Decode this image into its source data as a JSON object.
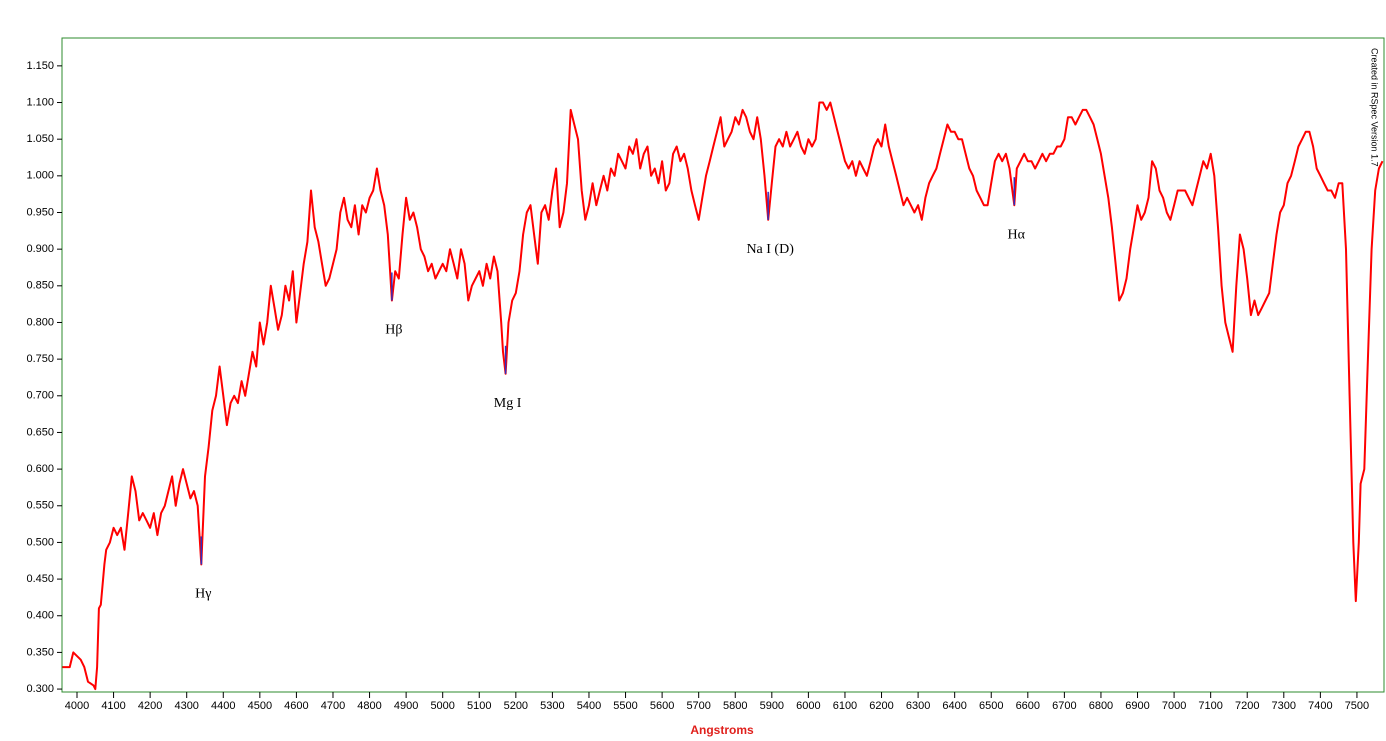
{
  "chart_data": {
    "type": "line",
    "x_label": "Angstroms",
    "side_note": "Created in RSpec Version 1.7",
    "color": "#ff0000",
    "frame_color": "#2e8b2e",
    "xlim": [
      3959,
      7574
    ],
    "ylim": [
      0.296,
      1.188
    ],
    "xticks": [
      4000,
      4100,
      4200,
      4300,
      4400,
      4500,
      4600,
      4700,
      4800,
      4900,
      5000,
      5100,
      5200,
      5300,
      5400,
      5500,
      5600,
      5700,
      5800,
      5900,
      6000,
      6100,
      6200,
      6300,
      6400,
      6500,
      6600,
      6700,
      6800,
      6900,
      7000,
      7100,
      7200,
      7300,
      7400,
      7500
    ],
    "yticks": [
      {
        "value": 0.3,
        "label": "0.300"
      },
      {
        "value": 0.35,
        "label": "0.350"
      },
      {
        "value": 0.4,
        "label": "0.400"
      },
      {
        "value": 0.45,
        "label": "0.450"
      },
      {
        "value": 0.5,
        "label": "0.500"
      },
      {
        "value": 0.55,
        "label": "0.550"
      },
      {
        "value": 0.6,
        "label": "0.600"
      },
      {
        "value": 0.65,
        "label": "0.650"
      },
      {
        "value": 0.7,
        "label": "0.700"
      },
      {
        "value": 0.75,
        "label": "0.750"
      },
      {
        "value": 0.8,
        "label": "0.800"
      },
      {
        "value": 0.85,
        "label": "0.850"
      },
      {
        "value": 0.9,
        "label": "0.900"
      },
      {
        "value": 0.95,
        "label": "0.950"
      },
      {
        "value": 1.0,
        "label": "1.000"
      },
      {
        "value": 1.05,
        "label": "1.050"
      },
      {
        "value": 1.1,
        "label": "1.100"
      },
      {
        "value": 1.15,
        "label": "1.150"
      }
    ],
    "annotations": [
      {
        "text": "Hγ",
        "x": 4340
      },
      {
        "text": "Hβ",
        "x": 4861
      },
      {
        "text": "Mg I",
        "x": 5172
      },
      {
        "text": "Na I (D)",
        "x": 5890
      },
      {
        "text": "Hα",
        "x": 6563
      }
    ],
    "x": [
      3960,
      3980,
      3990,
      4000,
      4010,
      4020,
      4030,
      4045,
      4050,
      4055,
      4060,
      4065,
      4075,
      4080,
      4090,
      4100,
      4110,
      4120,
      4130,
      4140,
      4150,
      4160,
      4170,
      4180,
      4190,
      4200,
      4210,
      4220,
      4230,
      4240,
      4250,
      4260,
      4270,
      4280,
      4290,
      4300,
      4310,
      4320,
      4330,
      4340,
      4350,
      4360,
      4370,
      4380,
      4390,
      4400,
      4410,
      4420,
      4430,
      4440,
      4450,
      4460,
      4470,
      4480,
      4490,
      4500,
      4510,
      4520,
      4530,
      4540,
      4550,
      4560,
      4570,
      4580,
      4590,
      4600,
      4610,
      4620,
      4630,
      4640,
      4650,
      4660,
      4670,
      4680,
      4690,
      4700,
      4710,
      4720,
      4730,
      4740,
      4750,
      4760,
      4770,
      4780,
      4790,
      4800,
      4810,
      4820,
      4830,
      4840,
      4850,
      4861,
      4870,
      4880,
      4890,
      4900,
      4910,
      4920,
      4930,
      4940,
      4950,
      4960,
      4970,
      4980,
      4990,
      5000,
      5010,
      5020,
      5030,
      5040,
      5050,
      5060,
      5070,
      5080,
      5090,
      5100,
      5110,
      5120,
      5130,
      5140,
      5150,
      5160,
      5165,
      5172,
      5180,
      5190,
      5200,
      5210,
      5220,
      5230,
      5240,
      5250,
      5260,
      5270,
      5280,
      5290,
      5300,
      5310,
      5320,
      5330,
      5340,
      5350,
      5360,
      5370,
      5380,
      5390,
      5400,
      5410,
      5420,
      5430,
      5440,
      5450,
      5460,
      5470,
      5480,
      5490,
      5500,
      5510,
      5520,
      5530,
      5540,
      5550,
      5560,
      5570,
      5580,
      5590,
      5600,
      5610,
      5620,
      5630,
      5640,
      5650,
      5660,
      5670,
      5680,
      5690,
      5700,
      5710,
      5720,
      5730,
      5740,
      5750,
      5760,
      5770,
      5780,
      5790,
      5800,
      5810,
      5820,
      5830,
      5840,
      5850,
      5860,
      5870,
      5880,
      5890,
      5900,
      5910,
      5920,
      5930,
      5940,
      5950,
      5960,
      5970,
      5980,
      5990,
      6000,
      6010,
      6020,
      6030,
      6040,
      6050,
      6060,
      6070,
      6080,
      6090,
      6100,
      6110,
      6120,
      6130,
      6140,
      6150,
      6160,
      6170,
      6180,
      6190,
      6200,
      6210,
      6220,
      6230,
      6240,
      6250,
      6260,
      6270,
      6280,
      6290,
      6300,
      6310,
      6320,
      6330,
      6340,
      6350,
      6360,
      6370,
      6380,
      6390,
      6400,
      6410,
      6420,
      6430,
      6440,
      6450,
      6460,
      6470,
      6480,
      6490,
      6500,
      6510,
      6520,
      6530,
      6540,
      6550,
      6563,
      6570,
      6580,
      6590,
      6600,
      6610,
      6620,
      6630,
      6640,
      6650,
      6660,
      6670,
      6680,
      6690,
      6700,
      6710,
      6720,
      6730,
      6740,
      6750,
      6760,
      6770,
      6780,
      6790,
      6800,
      6810,
      6820,
      6830,
      6840,
      6850,
      6860,
      6870,
      6880,
      6890,
      6900,
      6910,
      6920,
      6930,
      6940,
      6950,
      6960,
      6970,
      6980,
      6990,
      7000,
      7010,
      7020,
      7030,
      7040,
      7050,
      7060,
      7070,
      7080,
      7090,
      7100,
      7110,
      7120,
      7130,
      7140,
      7150,
      7160,
      7170,
      7180,
      7190,
      7200,
      7210,
      7220,
      7230,
      7240,
      7250,
      7260,
      7270,
      7280,
      7290,
      7300,
      7310,
      7320,
      7330,
      7340,
      7350,
      7360,
      7370,
      7380,
      7390,
      7400,
      7410,
      7420,
      7430,
      7440,
      7450,
      7460,
      7470,
      7480,
      7490,
      7497,
      7505,
      7510,
      7520,
      7530,
      7540,
      7550,
      7560,
      7570
    ],
    "values": [
      0.33,
      0.33,
      0.35,
      0.345,
      0.34,
      0.33,
      0.31,
      0.305,
      0.3,
      0.33,
      0.41,
      0.415,
      0.47,
      0.49,
      0.5,
      0.52,
      0.51,
      0.52,
      0.49,
      0.54,
      0.59,
      0.57,
      0.53,
      0.54,
      0.53,
      0.52,
      0.54,
      0.51,
      0.54,
      0.55,
      0.57,
      0.59,
      0.55,
      0.58,
      0.6,
      0.58,
      0.56,
      0.57,
      0.55,
      0.47,
      0.59,
      0.63,
      0.68,
      0.7,
      0.74,
      0.7,
      0.66,
      0.69,
      0.7,
      0.69,
      0.72,
      0.7,
      0.73,
      0.76,
      0.74,
      0.8,
      0.77,
      0.8,
      0.85,
      0.82,
      0.79,
      0.81,
      0.85,
      0.83,
      0.87,
      0.8,
      0.84,
      0.88,
      0.91,
      0.98,
      0.93,
      0.91,
      0.88,
      0.85,
      0.86,
      0.88,
      0.9,
      0.95,
      0.97,
      0.94,
      0.93,
      0.96,
      0.92,
      0.96,
      0.95,
      0.97,
      0.98,
      1.01,
      0.98,
      0.96,
      0.92,
      0.83,
      0.87,
      0.86,
      0.92,
      0.97,
      0.94,
      0.95,
      0.93,
      0.9,
      0.89,
      0.87,
      0.88,
      0.86,
      0.87,
      0.88,
      0.87,
      0.9,
      0.88,
      0.86,
      0.9,
      0.88,
      0.83,
      0.85,
      0.86,
      0.87,
      0.85,
      0.88,
      0.86,
      0.89,
      0.87,
      0.8,
      0.76,
      0.73,
      0.8,
      0.83,
      0.84,
      0.87,
      0.92,
      0.95,
      0.96,
      0.92,
      0.88,
      0.95,
      0.96,
      0.94,
      0.98,
      1.01,
      0.93,
      0.95,
      0.99,
      1.09,
      1.07,
      1.05,
      0.98,
      0.94,
      0.96,
      0.99,
      0.96,
      0.98,
      1.0,
      0.98,
      1.01,
      1.0,
      1.03,
      1.02,
      1.01,
      1.04,
      1.03,
      1.05,
      1.01,
      1.03,
      1.04,
      1.0,
      1.01,
      0.99,
      1.02,
      0.98,
      0.99,
      1.03,
      1.04,
      1.02,
      1.03,
      1.01,
      0.98,
      0.96,
      0.94,
      0.97,
      1.0,
      1.02,
      1.04,
      1.06,
      1.08,
      1.04,
      1.05,
      1.06,
      1.08,
      1.07,
      1.09,
      1.08,
      1.06,
      1.05,
      1.08,
      1.05,
      1.0,
      0.94,
      0.99,
      1.04,
      1.05,
      1.04,
      1.06,
      1.04,
      1.05,
      1.06,
      1.04,
      1.03,
      1.05,
      1.04,
      1.05,
      1.1,
      1.1,
      1.09,
      1.1,
      1.08,
      1.06,
      1.04,
      1.02,
      1.01,
      1.02,
      1.0,
      1.02,
      1.01,
      1.0,
      1.02,
      1.04,
      1.05,
      1.04,
      1.07,
      1.04,
      1.02,
      1.0,
      0.98,
      0.96,
      0.97,
      0.96,
      0.95,
      0.96,
      0.94,
      0.97,
      0.99,
      1.0,
      1.01,
      1.03,
      1.05,
      1.07,
      1.06,
      1.06,
      1.05,
      1.05,
      1.03,
      1.01,
      1.0,
      0.98,
      0.97,
      0.96,
      0.96,
      0.99,
      1.02,
      1.03,
      1.02,
      1.03,
      1.01,
      0.96,
      1.01,
      1.02,
      1.03,
      1.02,
      1.02,
      1.01,
      1.02,
      1.03,
      1.02,
      1.03,
      1.03,
      1.04,
      1.04,
      1.05,
      1.08,
      1.08,
      1.07,
      1.08,
      1.09,
      1.09,
      1.08,
      1.07,
      1.05,
      1.03,
      1.0,
      0.97,
      0.93,
      0.88,
      0.83,
      0.84,
      0.86,
      0.9,
      0.93,
      0.96,
      0.94,
      0.95,
      0.97,
      1.02,
      1.01,
      0.98,
      0.97,
      0.95,
      0.94,
      0.96,
      0.98,
      0.98,
      0.98,
      0.97,
      0.96,
      0.98,
      1.0,
      1.02,
      1.01,
      1.03,
      1.0,
      0.93,
      0.85,
      0.8,
      0.78,
      0.76,
      0.85,
      0.92,
      0.9,
      0.86,
      0.81,
      0.83,
      0.81,
      0.82,
      0.83,
      0.84,
      0.88,
      0.92,
      0.95,
      0.96,
      0.99,
      1.0,
      1.02,
      1.04,
      1.05,
      1.06,
      1.06,
      1.04,
      1.01,
      1.0,
      0.99,
      0.98,
      0.98,
      0.97,
      0.99,
      0.99,
      0.9,
      0.7,
      0.5,
      0.42,
      0.5,
      0.58,
      0.6,
      0.75,
      0.9,
      0.98,
      1.01,
      1.02
    ]
  }
}
